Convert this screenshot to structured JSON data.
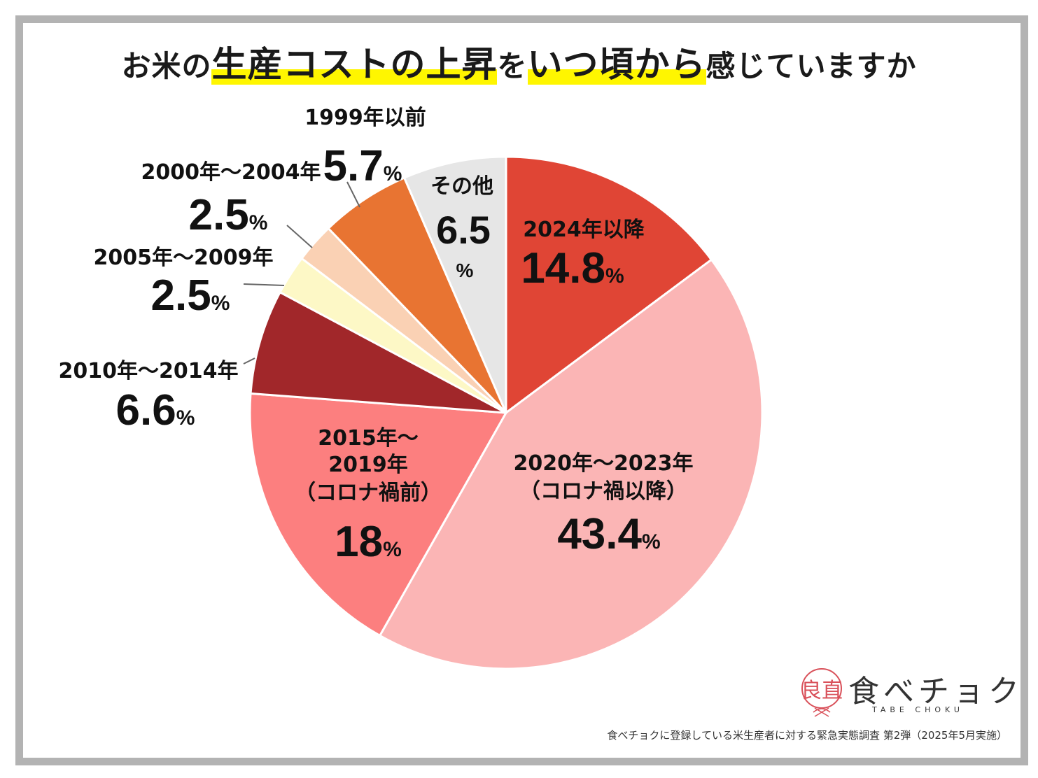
{
  "title": {
    "part1": "お米の",
    "part2": "生産コストの上昇",
    "part3": "を",
    "part4": "いつ頃から",
    "part5": "感じていますか"
  },
  "chart_data": {
    "type": "pie",
    "title": "お米の生産コストの上昇をいつ頃から感じていますか",
    "unit": "%",
    "slices": [
      {
        "name": "2024年以降",
        "value": 14.8,
        "display": "14.8",
        "color": "#e04535"
      },
      {
        "name": "2020年～2023年（コロナ禍以降）",
        "label_lines": [
          "2020年～2023年",
          "（コロナ禍以降）"
        ],
        "value": 43.4,
        "display": "43.4",
        "color": "#fbb5b5"
      },
      {
        "name": "2015年～2019年（コロナ禍前）",
        "label_lines": [
          "2015年～",
          "2019年",
          "（コロナ禍前）"
        ],
        "value": 18,
        "display": "18",
        "color": "#fc7f7f"
      },
      {
        "name": "2010年～2014年",
        "value": 6.6,
        "display": "6.6",
        "color": "#a1272a"
      },
      {
        "name": "2005年～2009年",
        "value": 2.5,
        "display": "2.5",
        "color": "#fdf8c6"
      },
      {
        "name": "2000年～2004年",
        "value": 2.5,
        "display": "2.5",
        "color": "#fad1b4"
      },
      {
        "name": "1999年以前",
        "value": 5.7,
        "display": "5.7",
        "color": "#e87432"
      },
      {
        "name": "その他",
        "value": 6.5,
        "display": "6.5",
        "color": "#e6e6e6"
      }
    ]
  },
  "logo": {
    "text": "食べチョク",
    "subtext": "TABE CHOKU",
    "mark_text": "良直"
  },
  "footnote": "食べチョクに登録している米生産者に対する緊急実態調査 第2弾（2025年5月実施）",
  "colors": {
    "highlight": "#fff600",
    "frame": "#b3b3b3",
    "logo_mark": "#d9515a"
  }
}
